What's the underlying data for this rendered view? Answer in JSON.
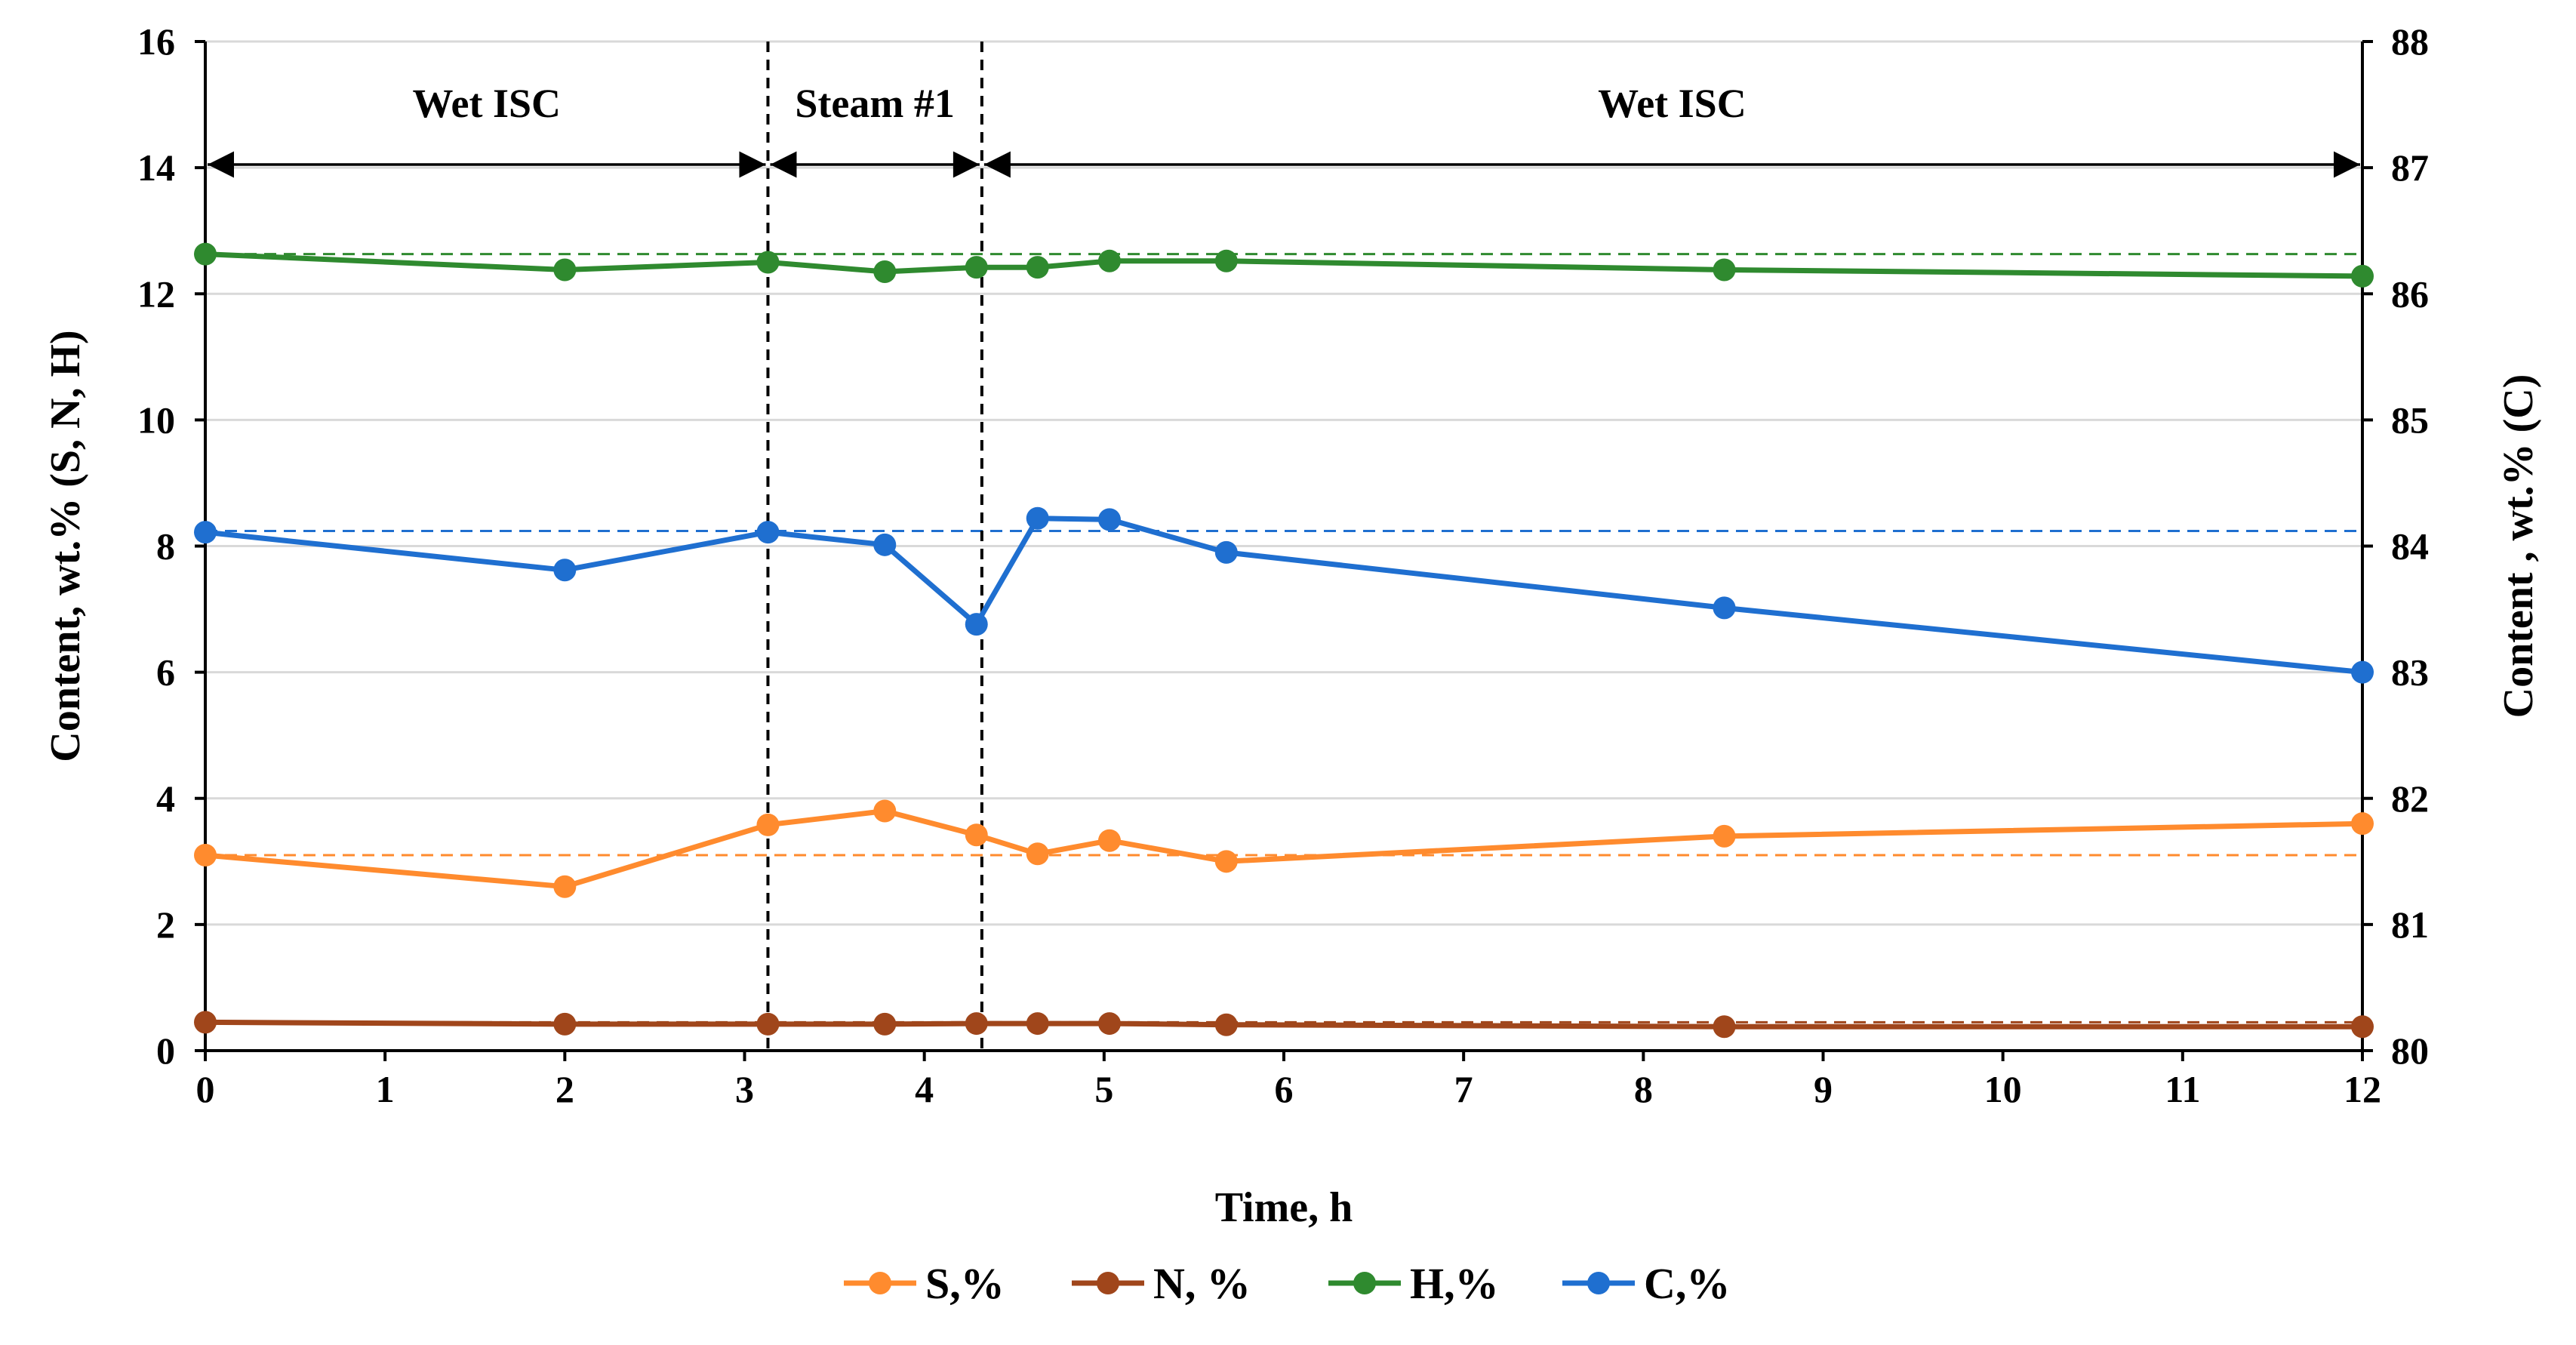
{
  "chart_data": {
    "type": "line",
    "xlabel": "Time, h",
    "ylabel_left": "Content, wt.% (S, N, H)",
    "ylabel_right": "Content , wt.% (C)",
    "xlim": [
      0,
      12
    ],
    "ylim_left": [
      0,
      16
    ],
    "ylim_right": [
      80,
      88
    ],
    "xticks": [
      "0",
      "1",
      "2",
      "3",
      "4",
      "5",
      "6",
      "7",
      "8",
      "9",
      "10",
      "11",
      "12"
    ],
    "yticks_left": [
      "0",
      "2",
      "4",
      "6",
      "8",
      "10",
      "12",
      "14",
      "16"
    ],
    "yticks_right": [
      "80",
      "81",
      "82",
      "83",
      "84",
      "85",
      "86",
      "87",
      "88"
    ],
    "grid": true,
    "phases": [
      {
        "label": "Wet ISC",
        "start": 0,
        "end": 3.13
      },
      {
        "label": "Steam #1",
        "start": 3.13,
        "end": 4.32
      },
      {
        "label": "Wet ISC",
        "start": 4.32,
        "end": 12
      }
    ],
    "phase_boundaries": [
      3.13,
      4.32
    ],
    "series": [
      {
        "name": "S,%",
        "axis": "left",
        "color": "#ff8b2e",
        "baseline": 3.1,
        "x": [
          0,
          2,
          3.13,
          3.78,
          4.29,
          4.63,
          5.03,
          5.68,
          8.45,
          12
        ],
        "y": [
          3.1,
          2.6,
          3.58,
          3.8,
          3.42,
          3.12,
          3.33,
          3.0,
          3.4,
          3.6
        ]
      },
      {
        "name": "N, %",
        "axis": "left",
        "color": "#a0461b",
        "baseline": 0.45,
        "x": [
          0,
          2,
          3.13,
          3.78,
          4.29,
          4.63,
          5.03,
          5.68,
          8.45,
          12
        ],
        "y": [
          0.45,
          0.42,
          0.42,
          0.42,
          0.43,
          0.43,
          0.43,
          0.41,
          0.38,
          0.38
        ]
      },
      {
        "name": "H,%",
        "axis": "left",
        "color": "#2f8a2f",
        "baseline": 12.63,
        "x": [
          0,
          2,
          3.13,
          3.78,
          4.29,
          4.63,
          5.03,
          5.68,
          8.45,
          12
        ],
        "y": [
          12.63,
          12.38,
          12.5,
          12.35,
          12.42,
          12.42,
          12.52,
          12.52,
          12.38,
          12.28
        ]
      },
      {
        "name": "C,%",
        "axis": "right",
        "color": "#1f6fd0",
        "baseline": 84.12,
        "x": [
          0,
          2,
          3.13,
          3.78,
          4.29,
          4.63,
          5.03,
          5.68,
          8.45,
          12
        ],
        "y": [
          84.11,
          83.81,
          84.11,
          84.01,
          83.38,
          84.22,
          84.21,
          83.95,
          83.51,
          83.0
        ]
      }
    ]
  }
}
